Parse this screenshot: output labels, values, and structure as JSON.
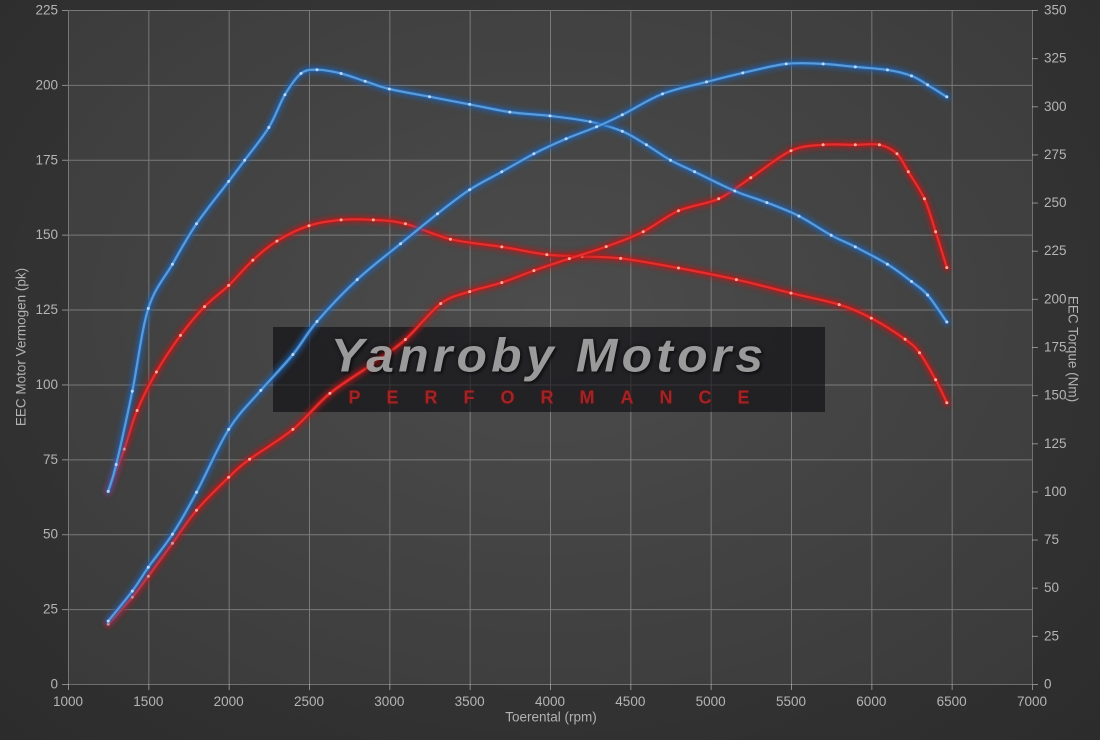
{
  "watermark": {
    "line1": "Yanroby Motors",
    "line2": "PERFORMANCE"
  },
  "colors": {
    "background": "#333333",
    "plot_background_center": "#4c4c4c",
    "plot_background_edge": "#3a3a3a",
    "grid": "#c8c8c8",
    "tick_text": "#b5b5b5",
    "watermark_text": "#a4a4a4",
    "watermark_sub": "#ab2424",
    "watermark_box": "rgba(12,12,16,0.62)"
  },
  "chart_data": {
    "type": "line",
    "title": "",
    "xlabel": "Toerental (rpm)",
    "ylabel_left": "EEC Motor Vermogen (pk)",
    "ylabel_right": "EEC Torque (Nm)",
    "x_range": [
      1000,
      7000
    ],
    "x_ticks": [
      1000,
      1500,
      2000,
      2500,
      3000,
      3500,
      4000,
      4500,
      5000,
      5500,
      6000,
      6500,
      7000
    ],
    "y_left_range": [
      0,
      225
    ],
    "y_left_ticks": [
      0,
      25,
      50,
      75,
      100,
      125,
      150,
      175,
      200,
      225
    ],
    "y_right_range": [
      0,
      350
    ],
    "y_right_ticks": [
      0,
      25,
      50,
      75,
      100,
      125,
      150,
      175,
      200,
      225,
      250,
      275,
      300,
      325,
      350
    ],
    "grid": true,
    "legend_position": "none",
    "series": [
      {
        "name": "torque-red",
        "axis": "right",
        "unit": "Nm",
        "color": "#e83030",
        "glow": "#bf1414",
        "dot": "#ffc5b2",
        "peak": 241,
        "points": [
          [
            1250,
            100
          ],
          [
            1350,
            122
          ],
          [
            1430,
            142
          ],
          [
            1550,
            162
          ],
          [
            1700,
            181
          ],
          [
            1850,
            196
          ],
          [
            2000,
            207
          ],
          [
            2150,
            220
          ],
          [
            2300,
            230
          ],
          [
            2500,
            238
          ],
          [
            2700,
            241
          ],
          [
            2900,
            241
          ],
          [
            3100,
            239
          ],
          [
            3380,
            231
          ],
          [
            3700,
            227
          ],
          [
            3980,
            223
          ],
          [
            4200,
            222
          ],
          [
            4440,
            221
          ],
          [
            4800,
            216
          ],
          [
            5160,
            210
          ],
          [
            5500,
            203
          ],
          [
            5800,
            197
          ],
          [
            6000,
            190
          ],
          [
            6210,
            179
          ],
          [
            6300,
            172
          ],
          [
            6400,
            158
          ],
          [
            6470,
            146
          ]
        ]
      },
      {
        "name": "power-red",
        "axis": "left",
        "unit": "pk",
        "color": "#e83030",
        "glow": "#bf1414",
        "dot": "#ffc5b2",
        "peak": 180,
        "points": [
          [
            1250,
            20
          ],
          [
            1400,
            29
          ],
          [
            1500,
            36
          ],
          [
            1650,
            47
          ],
          [
            1800,
            58
          ],
          [
            2000,
            69
          ],
          [
            2130,
            75
          ],
          [
            2400,
            85
          ],
          [
            2630,
            97
          ],
          [
            2900,
            107
          ],
          [
            3100,
            115
          ],
          [
            3320,
            127
          ],
          [
            3500,
            131
          ],
          [
            3700,
            134
          ],
          [
            3900,
            138
          ],
          [
            4120,
            142
          ],
          [
            4350,
            146
          ],
          [
            4580,
            151
          ],
          [
            4800,
            158
          ],
          [
            5050,
            162
          ],
          [
            5250,
            169
          ],
          [
            5500,
            178
          ],
          [
            5700,
            180
          ],
          [
            5900,
            180
          ],
          [
            6050,
            180
          ],
          [
            6160,
            177
          ],
          [
            6230,
            171
          ],
          [
            6330,
            162
          ],
          [
            6400,
            151
          ],
          [
            6470,
            139
          ]
        ]
      },
      {
        "name": "torque-blue",
        "axis": "right",
        "unit": "Nm",
        "color": "#5c9fdc",
        "glow": "#1f64b8",
        "dot": "#cfe4f8",
        "peak": 319,
        "points": [
          [
            1250,
            100
          ],
          [
            1300,
            114
          ],
          [
            1400,
            152
          ],
          [
            1500,
            195
          ],
          [
            1650,
            218
          ],
          [
            1800,
            239
          ],
          [
            2000,
            261
          ],
          [
            2100,
            272
          ],
          [
            2250,
            289
          ],
          [
            2350,
            306
          ],
          [
            2450,
            317
          ],
          [
            2550,
            319
          ],
          [
            2700,
            317
          ],
          [
            2850,
            313
          ],
          [
            3000,
            309
          ],
          [
            3250,
            305
          ],
          [
            3500,
            301
          ],
          [
            3750,
            297
          ],
          [
            4000,
            295
          ],
          [
            4250,
            292
          ],
          [
            4450,
            287
          ],
          [
            4600,
            280
          ],
          [
            4750,
            272
          ],
          [
            4900,
            266
          ],
          [
            5150,
            256
          ],
          [
            5350,
            250
          ],
          [
            5550,
            243
          ],
          [
            5750,
            233
          ],
          [
            5900,
            227
          ],
          [
            6100,
            218
          ],
          [
            6250,
            209
          ],
          [
            6350,
            202
          ],
          [
            6470,
            188
          ]
        ]
      },
      {
        "name": "power-blue",
        "axis": "left",
        "unit": "pk",
        "color": "#5c9fdc",
        "glow": "#1f64b8",
        "dot": "#cfe4f8",
        "peak": 207,
        "points": [
          [
            1250,
            21
          ],
          [
            1400,
            31
          ],
          [
            1500,
            39
          ],
          [
            1650,
            50
          ],
          [
            1800,
            64
          ],
          [
            2000,
            85
          ],
          [
            2200,
            98
          ],
          [
            2400,
            110
          ],
          [
            2550,
            121
          ],
          [
            2800,
            135
          ],
          [
            3070,
            147
          ],
          [
            3300,
            157
          ],
          [
            3500,
            165
          ],
          [
            3700,
            171
          ],
          [
            3900,
            177
          ],
          [
            4100,
            182
          ],
          [
            4290,
            186
          ],
          [
            4450,
            190
          ],
          [
            4700,
            197
          ],
          [
            4975,
            201
          ],
          [
            5200,
            204
          ],
          [
            5470,
            207
          ],
          [
            5700,
            207
          ],
          [
            5900,
            206
          ],
          [
            6100,
            205
          ],
          [
            6250,
            203
          ],
          [
            6350,
            200
          ],
          [
            6470,
            196
          ]
        ]
      }
    ]
  }
}
